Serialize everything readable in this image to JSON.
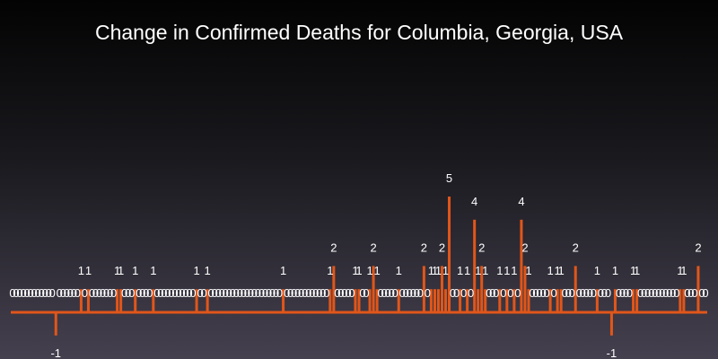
{
  "chart_data": {
    "type": "bar",
    "title": "Change in Confirmed Deaths for Columbia, Georgia, USA",
    "xlabel": "",
    "ylabel": "",
    "ylim": [
      -1,
      5
    ],
    "grid": false,
    "legend": "none",
    "bar_color": "#e0561a",
    "label_color": "#ffffff",
    "values": [
      0,
      0,
      0,
      0,
      0,
      0,
      0,
      0,
      0,
      0,
      0,
      0,
      -1,
      0,
      0,
      0,
      0,
      0,
      0,
      1,
      0,
      1,
      0,
      0,
      0,
      0,
      0,
      0,
      0,
      1,
      1,
      0,
      0,
      0,
      1,
      0,
      0,
      0,
      0,
      1,
      0,
      0,
      0,
      0,
      0,
      0,
      0,
      0,
      0,
      0,
      0,
      1,
      0,
      0,
      1,
      0,
      0,
      0,
      0,
      0,
      0,
      0,
      0,
      0,
      0,
      0,
      0,
      0,
      0,
      0,
      0,
      0,
      0,
      0,
      0,
      1,
      0,
      0,
      0,
      0,
      0,
      0,
      0,
      0,
      0,
      0,
      0,
      0,
      1,
      2,
      0,
      0,
      0,
      0,
      0,
      1,
      1,
      0,
      0,
      1,
      2,
      1,
      0,
      0,
      0,
      0,
      0,
      1,
      0,
      0,
      0,
      0,
      0,
      0,
      2,
      0,
      1,
      1,
      1,
      2,
      1,
      5,
      0,
      0,
      1,
      0,
      1,
      0,
      4,
      1,
      2,
      1,
      0,
      0,
      0,
      1,
      0,
      1,
      0,
      1,
      0,
      4,
      2,
      1,
      0,
      0,
      0,
      0,
      0,
      1,
      0,
      1,
      1,
      0,
      0,
      0,
      2,
      0,
      0,
      0,
      0,
      0,
      1,
      0,
      0,
      0,
      -1,
      1,
      0,
      0,
      0,
      0,
      1,
      1,
      0,
      0,
      0,
      0,
      0,
      0,
      0,
      0,
      0,
      0,
      0,
      1,
      1,
      0,
      0,
      0,
      2,
      0,
      0
    ]
  }
}
